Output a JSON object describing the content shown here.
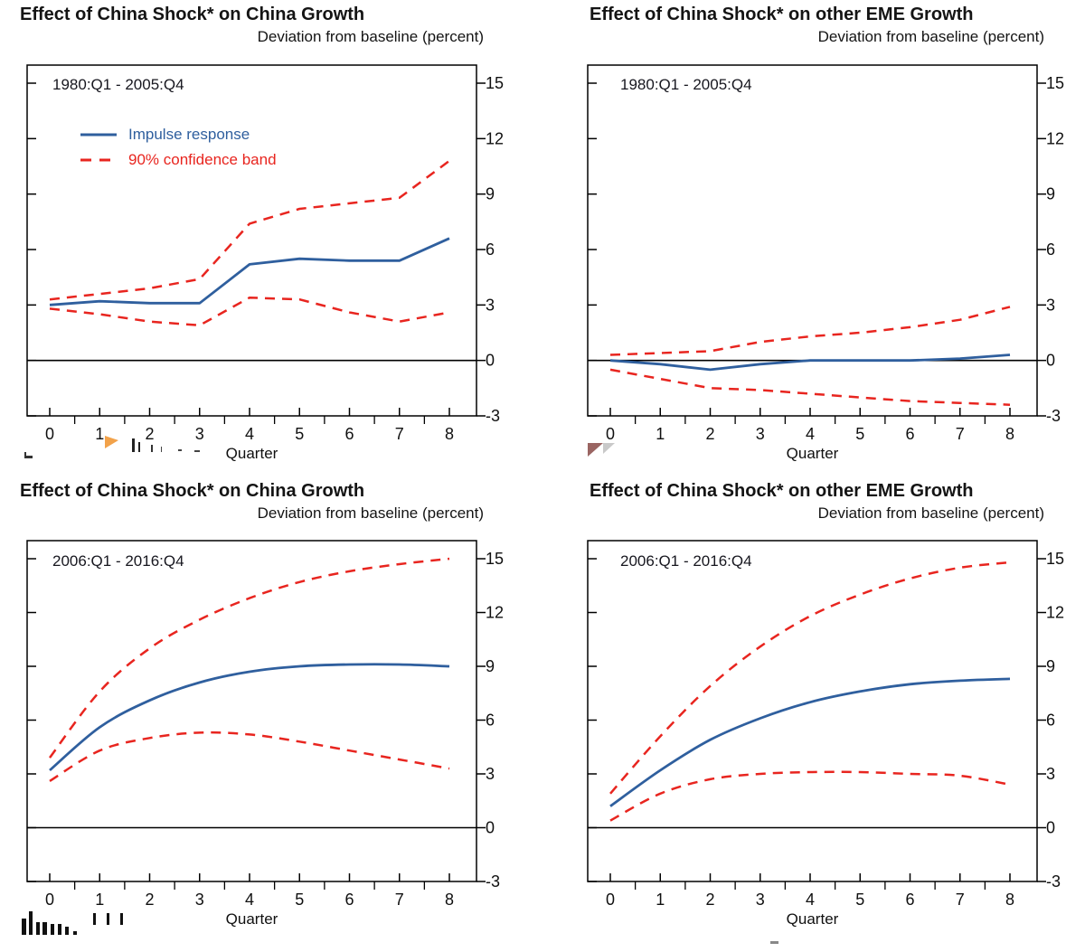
{
  "colors": {
    "impulse": "#2f5f9e",
    "band": "#e8251f",
    "axis": "#000000",
    "text": "#101010"
  },
  "legend": {
    "impulse_label": "Impulse response",
    "band_label": "90% confidence band"
  },
  "chart_data": [
    {
      "type": "line",
      "title": "Effect of China Shock* on China Growth",
      "subtitle": "Deviation from baseline (percent)",
      "period_label": "1980:Q1 - 2005:Q4",
      "xlabel": "Quarter",
      "ylim": [
        -3,
        15
      ],
      "yticks": [
        -3,
        0,
        3,
        6,
        9,
        12,
        15
      ],
      "x": [
        0,
        1,
        2,
        3,
        4,
        5,
        6,
        7,
        8
      ],
      "xticks": [
        0,
        1,
        2,
        3,
        4,
        5,
        6,
        7,
        8
      ],
      "zero_line": true,
      "smooth": false,
      "legend": true,
      "series": [
        {
          "name": "Impulse response",
          "key": "impulse-response-line",
          "style": "solid",
          "color_key": "impulse",
          "values": [
            3.0,
            3.2,
            3.1,
            3.1,
            5.2,
            5.5,
            5.4,
            5.4,
            6.6
          ]
        },
        {
          "name": "90% confidence band (upper)",
          "key": "confidence-band-upper",
          "style": "dashed",
          "color_key": "band",
          "values": [
            3.3,
            3.6,
            3.9,
            4.4,
            7.4,
            8.2,
            8.5,
            8.8,
            10.8
          ]
        },
        {
          "name": "90% confidence band (lower)",
          "key": "confidence-band-lower",
          "style": "dashed",
          "color_key": "band",
          "values": [
            2.8,
            2.5,
            2.1,
            1.9,
            3.4,
            3.3,
            2.6,
            2.1,
            2.6
          ]
        }
      ]
    },
    {
      "type": "line",
      "title": "Effect of China Shock* on other EME Growth",
      "subtitle": "Deviation from baseline (percent)",
      "period_label": "1980:Q1 - 2005:Q4",
      "xlabel": "Quarter",
      "ylim": [
        -3,
        15
      ],
      "yticks": [
        -3,
        0,
        3,
        6,
        9,
        12,
        15
      ],
      "x": [
        0,
        1,
        2,
        3,
        4,
        5,
        6,
        7,
        8
      ],
      "xticks": [
        0,
        1,
        2,
        3,
        4,
        5,
        6,
        7,
        8
      ],
      "zero_line": true,
      "smooth": false,
      "legend": false,
      "series": [
        {
          "name": "Impulse response",
          "key": "impulse-response-line",
          "style": "solid",
          "color_key": "impulse",
          "values": [
            0.0,
            -0.2,
            -0.5,
            -0.2,
            0.0,
            0.0,
            0.0,
            0.1,
            0.3
          ]
        },
        {
          "name": "90% confidence band (upper)",
          "key": "confidence-band-upper",
          "style": "dashed",
          "color_key": "band",
          "values": [
            0.3,
            0.4,
            0.5,
            1.0,
            1.3,
            1.5,
            1.8,
            2.2,
            2.9
          ]
        },
        {
          "name": "90% confidence band (lower)",
          "key": "confidence-band-lower",
          "style": "dashed",
          "color_key": "band",
          "values": [
            -0.5,
            -1.0,
            -1.5,
            -1.6,
            -1.8,
            -2.0,
            -2.2,
            -2.3,
            -2.4
          ]
        }
      ]
    },
    {
      "type": "line",
      "title": "Effect of China Shock* on China Growth",
      "subtitle": "Deviation from baseline (percent)",
      "period_label": "2006:Q1 - 2016:Q4",
      "xlabel": "Quarter",
      "ylim": [
        -3,
        15
      ],
      "yticks": [
        -3,
        0,
        3,
        6,
        9,
        12,
        15
      ],
      "x": [
        0,
        1,
        2,
        3,
        4,
        5,
        6,
        7,
        8
      ],
      "xticks": [
        0,
        1,
        2,
        3,
        4,
        5,
        6,
        7,
        8
      ],
      "zero_line": true,
      "smooth": true,
      "legend": false,
      "series": [
        {
          "name": "Impulse response",
          "key": "impulse-response-line",
          "style": "solid",
          "color_key": "impulse",
          "values": [
            3.2,
            5.6,
            7.1,
            8.1,
            8.7,
            9.0,
            9.1,
            9.1,
            9.0
          ]
        },
        {
          "name": "90% confidence band (upper)",
          "key": "confidence-band-upper",
          "style": "dashed",
          "color_key": "band",
          "values": [
            3.9,
            7.6,
            10.0,
            11.6,
            12.8,
            13.7,
            14.3,
            14.7,
            15.0
          ]
        },
        {
          "name": "90% confidence band (lower)",
          "key": "confidence-band-lower",
          "style": "dashed",
          "color_key": "band",
          "values": [
            2.6,
            4.3,
            5.0,
            5.3,
            5.2,
            4.8,
            4.3,
            3.8,
            3.3
          ]
        }
      ]
    },
    {
      "type": "line",
      "title": "Effect of China Shock* on other EME Growth",
      "subtitle": "Deviation from baseline (percent)",
      "period_label": "2006:Q1 - 2016:Q4",
      "xlabel": "Quarter",
      "ylim": [
        -3,
        15
      ],
      "yticks": [
        -3,
        0,
        3,
        6,
        9,
        12,
        15
      ],
      "x": [
        0,
        1,
        2,
        3,
        4,
        5,
        6,
        7,
        8
      ],
      "xticks": [
        0,
        1,
        2,
        3,
        4,
        5,
        6,
        7,
        8
      ],
      "zero_line": true,
      "smooth": true,
      "legend": false,
      "series": [
        {
          "name": "Impulse response",
          "key": "impulse-response-line",
          "style": "solid",
          "color_key": "impulse",
          "values": [
            1.2,
            3.2,
            4.9,
            6.1,
            7.0,
            7.6,
            8.0,
            8.2,
            8.3
          ]
        },
        {
          "name": "90% confidence band (upper)",
          "key": "confidence-band-upper",
          "style": "dashed",
          "color_key": "band",
          "values": [
            1.9,
            5.1,
            7.9,
            10.1,
            11.8,
            13.0,
            13.9,
            14.5,
            14.8
          ]
        },
        {
          "name": "90% confidence band (lower)",
          "key": "confidence-band-lower",
          "style": "dashed",
          "color_key": "band",
          "values": [
            0.4,
            1.9,
            2.7,
            3.0,
            3.1,
            3.1,
            3.0,
            2.9,
            2.4
          ]
        }
      ]
    }
  ]
}
